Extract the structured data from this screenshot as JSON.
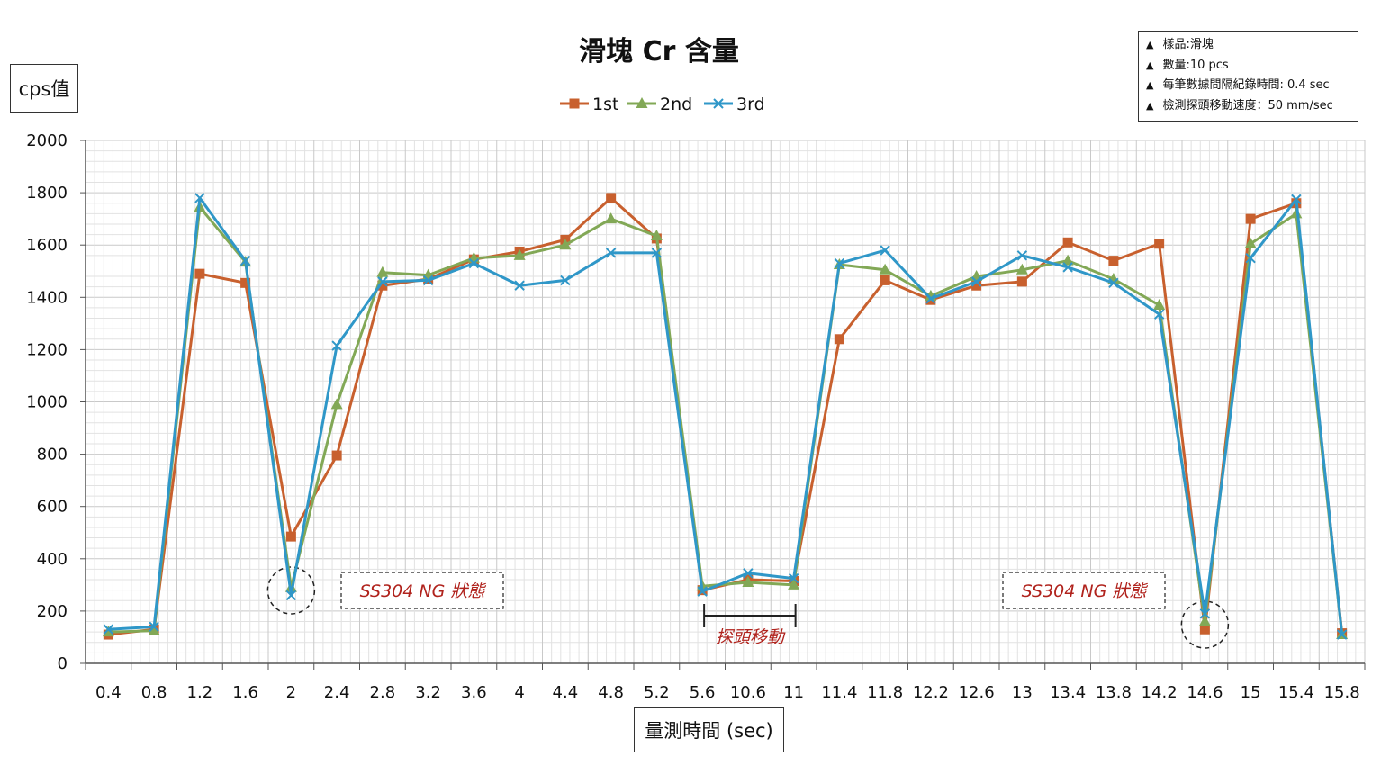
{
  "chart_data": {
    "type": "line",
    "title": "滑塊 Cr 含量",
    "ylabel": "cps值",
    "xlabel": "量測時間 (sec)",
    "ylim": [
      0,
      2000
    ],
    "yticks": [
      "0",
      "200",
      "400",
      "600",
      "800",
      "1000",
      "1200",
      "1400",
      "1600",
      "1800",
      "2000"
    ],
    "categories": [
      "0.4",
      "0.8",
      "1.2",
      "1.6",
      "2",
      "2.4",
      "2.8",
      "3.2",
      "3.6",
      "4",
      "4.4",
      "4.8",
      "5.2",
      "5.6",
      "10.6",
      "11",
      "11.4",
      "11.8",
      "12.2",
      "12.6",
      "13",
      "13.4",
      "13.8",
      "14.2",
      "14.6",
      "15",
      "15.4",
      "15.8"
    ],
    "grid": true,
    "legend_position": "top",
    "series": [
      {
        "name": "1st",
        "color": "#c8602e",
        "marker": "square",
        "values": [
          110,
          130,
          1490,
          1455,
          485,
          795,
          1445,
          1470,
          1545,
          1575,
          1620,
          1780,
          1625,
          280,
          320,
          315,
          1240,
          1465,
          1390,
          1445,
          1460,
          1610,
          1540,
          1605,
          130,
          1700,
          1760,
          115
        ]
      },
      {
        "name": "2nd",
        "color": "#82a856",
        "marker": "triangle",
        "values": [
          120,
          125,
          1745,
          1535,
          290,
          990,
          1495,
          1485,
          1550,
          1560,
          1600,
          1700,
          1635,
          295,
          310,
          300,
          1525,
          1505,
          1405,
          1480,
          1505,
          1540,
          1470,
          1370,
          160,
          1605,
          1720,
          110
        ]
      },
      {
        "name": "3rd",
        "color": "#2f97c8",
        "marker": "x",
        "values": [
          130,
          140,
          1780,
          1540,
          260,
          1215,
          1460,
          1465,
          1530,
          1445,
          1465,
          1570,
          1570,
          275,
          345,
          325,
          1530,
          1580,
          1395,
          1460,
          1560,
          1515,
          1455,
          1335,
          190,
          1550,
          1775,
          110
        ]
      }
    ],
    "annotations": [
      {
        "text": "SS304  NG 狀態",
        "near_category": "2"
      },
      {
        "text": "探頭移動",
        "span": [
          "5.6",
          "11"
        ]
      },
      {
        "text": "SS304  NG 狀態",
        "near_category": "14.6"
      }
    ]
  },
  "info_box": [
    "樣品:滑塊",
    "數量:10 pcs",
    "每筆數據間隔紀錄時間: 0.4 sec",
    "檢測探頭移動速度：50 mm/sec"
  ]
}
